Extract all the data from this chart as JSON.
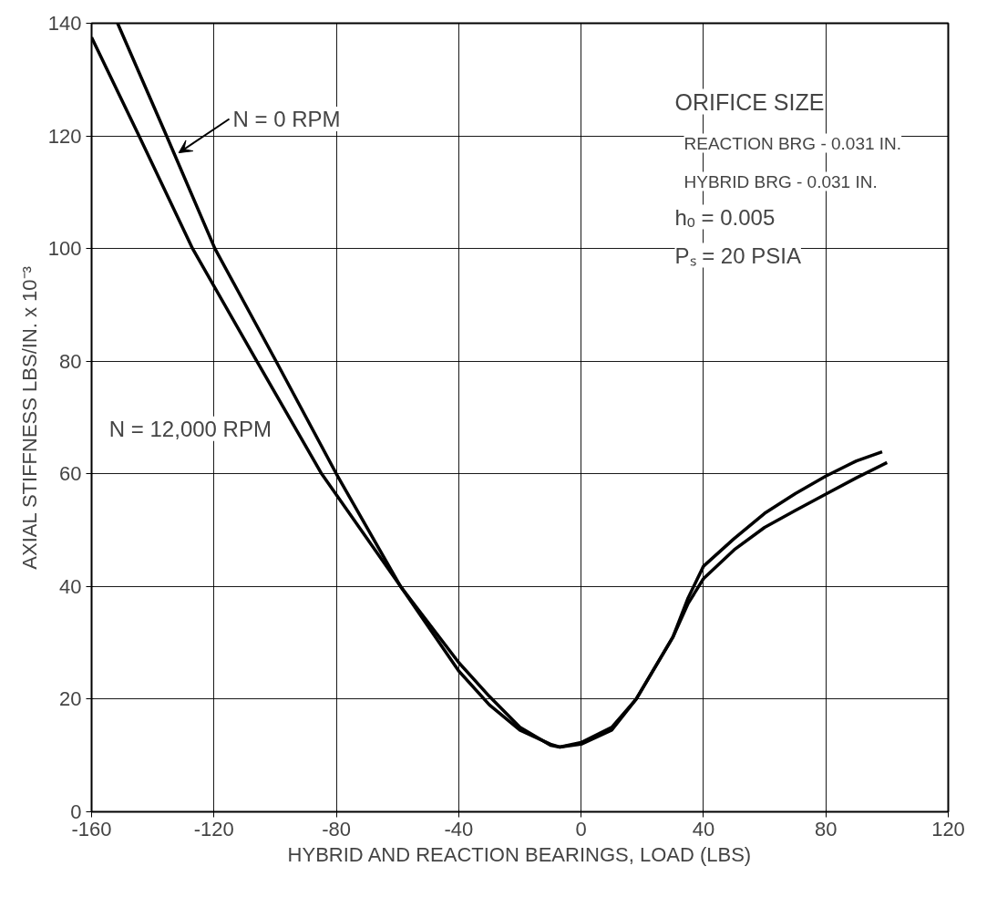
{
  "chart_data": {
    "type": "line",
    "xlabel": "HYBRID AND REACTION BEARINGS, LOAD (LBS)",
    "ylabel": "AXIAL STIFFNESS LBS/IN. x 10⁻³",
    "xlim": [
      -160,
      120
    ],
    "ylim": [
      0,
      140
    ],
    "xticks": [
      -160,
      -120,
      -80,
      -40,
      0,
      40,
      80,
      120
    ],
    "yticks": [
      0,
      20,
      40,
      60,
      80,
      100,
      120,
      140
    ],
    "grid": true,
    "marker": "none",
    "line_style": "solid",
    "series": [
      {
        "name": "N = 0 RPM",
        "color": "#000000",
        "x": [
          -151.5,
          -135.5,
          -119.7,
          -99.7,
          -80,
          -59,
          -40,
          -30,
          -20,
          -10,
          -7,
          0,
          10,
          18,
          30,
          35,
          40,
          50,
          60,
          70,
          80,
          90,
          98.4
        ],
        "values": [
          140,
          120,
          100,
          80,
          60,
          40,
          26.5,
          20.5,
          15,
          11.8,
          11.5,
          12,
          14.5,
          20,
          31,
          38,
          43.6,
          48.5,
          53,
          56.5,
          59.6,
          62.3,
          63.9
        ]
      },
      {
        "name": "N = 12,000 RPM",
        "color": "#000000",
        "x": [
          -160,
          -144.5,
          -127,
          -106,
          -84.8,
          -59,
          -40,
          -30,
          -20,
          -10,
          -7,
          0,
          10,
          18,
          30,
          35,
          40,
          50,
          60,
          70,
          80,
          90,
          100
        ],
        "values": [
          137.5,
          120,
          100,
          80,
          60,
          40,
          25,
          19,
          14.5,
          12,
          11.5,
          12.3,
          15,
          20,
          31,
          37,
          41.4,
          46.5,
          50.5,
          53.5,
          56.4,
          59.3,
          62
        ]
      }
    ],
    "annotations": [
      "ORIFICE SIZE",
      "REACTION BRG - 0.031 IN.",
      "HYBRID BRG - 0.031 IN.",
      "hₒ = 0.005",
      "Pₛ = 20 PSIA"
    ]
  }
}
